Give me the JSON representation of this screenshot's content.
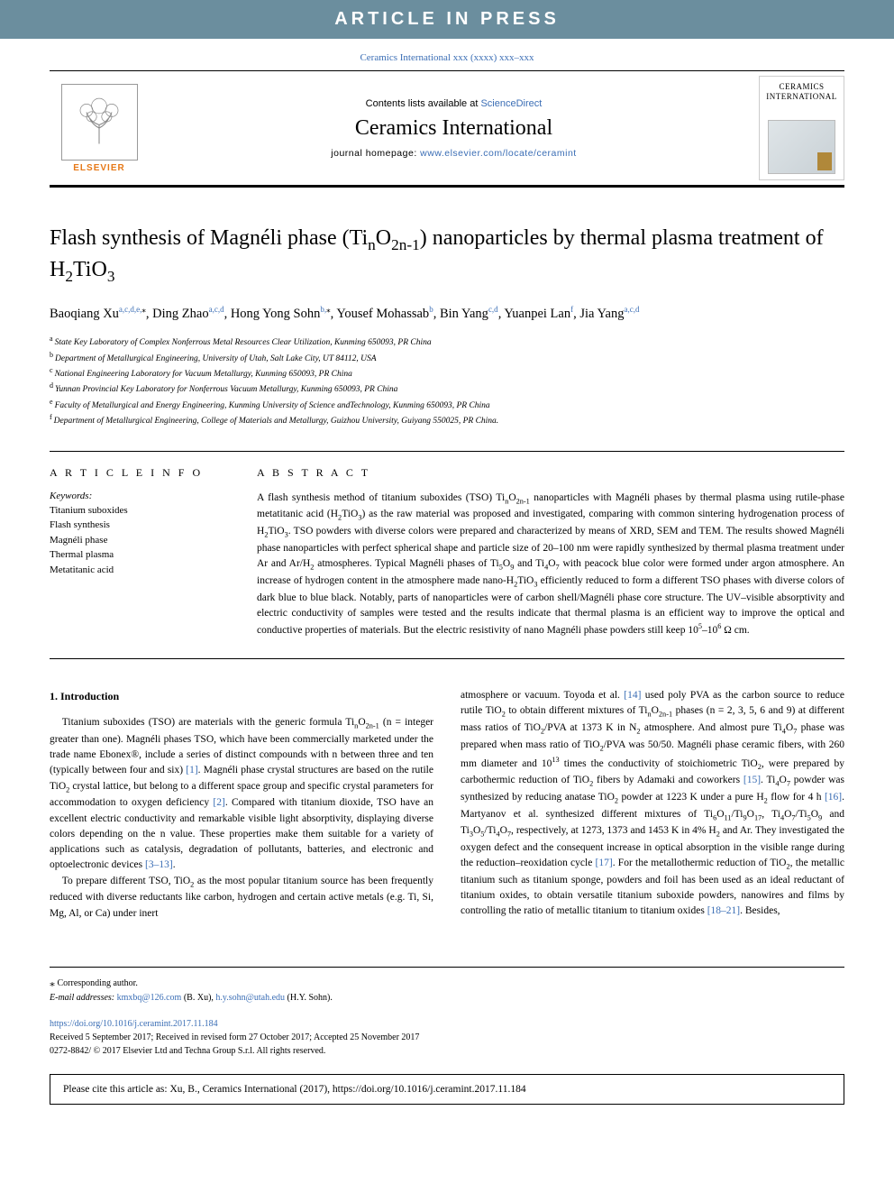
{
  "banner": "ARTICLE IN PRESS",
  "journalRef": {
    "text": "Ceramics International xxx (xxxx) xxx–xxx",
    "url": "#"
  },
  "masthead": {
    "publisher": "ELSEVIER",
    "contentsPrefix": "Contents lists available at ",
    "contentsLink": "ScienceDirect",
    "journalTitle": "Ceramics International",
    "homepagePrefix": "journal homepage: ",
    "homepageLink": "www.elsevier.com/locate/ceramint",
    "coverTitleLine1": "CERAMICS",
    "coverTitleLine2": "INTERNATIONAL"
  },
  "paper": {
    "title_html": "Flash synthesis of Magnéli phase (Ti<sub>n</sub>O<sub>2n-1</sub>) nanoparticles by thermal plasma treatment of H<sub>2</sub>TiO<sub>3</sub>",
    "authors_html": "Baoqiang Xu<span class='sup'>a,c,d,e,</span><span class='sup-plain'>⁎</span>, Ding Zhao<span class='sup'>a,c,d</span>, Hong Yong Sohn<span class='sup'>b,</span><span class='sup-plain'>⁎</span>, Yousef Mohassab<span class='sup'>b</span>, Bin Yang<span class='sup'>c,d</span>, Yuanpei Lan<span class='sup'>f</span>, Jia Yang<span class='sup'>a,c,d</span>",
    "affiliations": [
      {
        "sup": "a",
        "text": "State Key Laboratory of Complex Nonferrous Metal Resources Clear Utilization, Kunming 650093, PR China"
      },
      {
        "sup": "b",
        "text": "Department of Metallurgical Engineering, University of Utah, Salt Lake City, UT 84112, USA"
      },
      {
        "sup": "c",
        "text": "National Engineering Laboratory for Vacuum Metallurgy, Kunming 650093, PR China"
      },
      {
        "sup": "d",
        "text": "Yunnan Provincial Key Laboratory for Nonferrous Vacuum Metallurgy, Kunming 650093, PR China"
      },
      {
        "sup": "e",
        "text": "Faculty of Metallurgical and Energy Engineering, Kunming University of Science andTechnology, Kunming 650093, PR China"
      },
      {
        "sup": "f",
        "text": "Department of Metallurgical Engineering, College of Materials and Metallurgy, Guizhou University, Guiyang 550025, PR China."
      }
    ]
  },
  "articleInfo": {
    "heading": "A R T I C L E  I N F O",
    "keywordsLabel": "Keywords:",
    "keywords": [
      "Titanium suboxides",
      "Flash synthesis",
      "Magnéli phase",
      "Thermal plasma",
      "Metatitanic acid"
    ]
  },
  "abstract": {
    "heading": "A B S T R A C T",
    "text_html": "A flash synthesis method of titanium suboxides (TSO) Ti<sub>n</sub>O<sub>2n-1</sub> nanoparticles with Magnéli phases by thermal plasma using rutile-phase metatitanic acid (H<sub>2</sub>TiO<sub>3</sub>) as the raw material was proposed and investigated, comparing with common sintering hydrogenation process of H<sub>2</sub>TiO<sub>3</sub>. TSO powders with diverse colors were prepared and characterized by means of XRD, SEM and TEM. The results showed Magnéli phase nanoparticles with perfect spherical shape and particle size of 20–100 nm were rapidly synthesized by thermal plasma treatment under Ar and Ar/H<sub>2</sub> atmospheres. Typical Magnéli phases of Ti<sub>5</sub>O<sub>9</sub> and Ti<sub>4</sub>O<sub>7</sub> with peacock blue color were formed under argon atmosphere. An increase of hydrogen content in the atmosphere made nano-H<sub>2</sub>TiO<sub>3</sub> efficiently reduced to form a different TSO phases with diverse colors of dark blue to blue black. Notably, parts of nanoparticles were of carbon shell/Magnéli phase core structure. The UV–visible absorptivity and electric conductivity of samples were tested and the results indicate that thermal plasma is an efficient way to improve the optical and conductive properties of materials. But the electric resistivity of nano Magnéli phase powders still keep 10<sup>5</sup>–10<sup>6</sup> Ω cm."
  },
  "body": {
    "introHeading": "1. Introduction",
    "col1_html": "<p>Titanium suboxides (TSO) are materials with the generic formula Ti<sub>n</sub>O<sub>2n-1</sub> (n = integer greater than one). Magnéli phases TSO, which have been commercially marketed under the trade name Ebonex®, include a series of distinct compounds with n between three and ten (typically between four and six) <a class='ref-link' href='#'>[1]</a>. Magnéli phase crystal structures are based on the rutile TiO<sub>2</sub> crystal lattice, but belong to a different space group and specific crystal parameters for accommodation to oxygen deficiency <a class='ref-link' href='#'>[2]</a>. Compared with titanium dioxide, TSO have an excellent electric conductivity and remarkable visible light absorptivity, displaying diverse colors depending on the n value. These properties make them suitable for a variety of applications such as catalysis, degradation of pollutants, batteries, and electronic and optoelectronic devices <a class='ref-link' href='#'>[3–13]</a>.</p><p>To prepare different TSO, TiO<sub>2</sub> as the most popular titanium source has been frequently reduced with diverse reductants like carbon, hydrogen and certain active metals (e.g. Ti, Si, Mg, Al, or Ca) under inert</p>",
    "col2_html": "<p style='text-indent:0'>atmosphere or vacuum. Toyoda et al. <a class='ref-link' href='#'>[14]</a> used poly PVA as the carbon source to reduce rutile TiO<sub>2</sub> to obtain different mixtures of Ti<sub>n</sub>O<sub>2n-1</sub> phases (n = 2, 3, 5, 6 and 9) at different mass ratios of TiO<sub>2</sub>/PVA at 1373 K in N<sub>2</sub> atmosphere. And almost pure Ti<sub>4</sub>O<sub>7</sub> phase was prepared when mass ratio of TiO<sub>2</sub>/PVA was 50/50. Magnéli phase ceramic fibers, with 260 mm diameter and 10<sup>13</sup> times the conductivity of stoichiometric TiO<sub>2</sub>, were prepared by carbothermic reduction of TiO<sub>2</sub> fibers by Adamaki and coworkers <a class='ref-link' href='#'>[15]</a>. Ti<sub>4</sub>O<sub>7</sub> powder was synthesized by reducing anatase TiO<sub>2</sub> powder at 1223 K under a pure H<sub>2</sub> flow for 4 h <a class='ref-link' href='#'>[16]</a>. Martyanov et al. synthesized different mixtures of Ti<sub>6</sub>O<sub>11</sub>/Ti<sub>9</sub>O<sub>17</sub>, Ti<sub>4</sub>O<sub>7</sub>/Ti<sub>5</sub>O<sub>9</sub> and Ti<sub>3</sub>O<sub>5</sub>/Ti<sub>4</sub>O<sub>7</sub>, respectively, at 1273, 1373 and 1453 K in 4% H<sub>2</sub> and Ar. They investigated the oxygen defect and the consequent increase in optical absorption in the visible range during the reduction–reoxidation cycle <a class='ref-link' href='#'>[17]</a>. For the metallothermic reduction of TiO<sub>2</sub>, the metallic titanium such as titanium sponge, powders and foil has been used as an ideal reductant of titanium oxides, to obtain versatile titanium suboxide powders, nanowires and films by controlling the ratio of metallic titanium to titanium oxides <a class='ref-link' href='#'>[18–21]</a>. Besides,</p>"
  },
  "footnotes": {
    "corr": "Corresponding author.",
    "emailsLabel": "E-mail addresses:",
    "emails": [
      {
        "addr": "kmxbq@126.com",
        "who": "(B. Xu)"
      },
      {
        "addr": "h.y.sohn@utah.edu",
        "who": "(H.Y. Sohn)"
      }
    ]
  },
  "doiBlock": {
    "doi": "https://doi.org/10.1016/j.ceramint.2017.11.184",
    "received": "Received 5 September 2017; Received in revised form 27 October 2017; Accepted 25 November 2017",
    "copyright": "0272-8842/ © 2017 Elsevier Ltd and Techna Group S.r.l. All rights reserved."
  },
  "citeBox": "Please cite this article as: Xu, B., Ceramics International (2017), https://doi.org/10.1016/j.ceramint.2017.11.184"
}
